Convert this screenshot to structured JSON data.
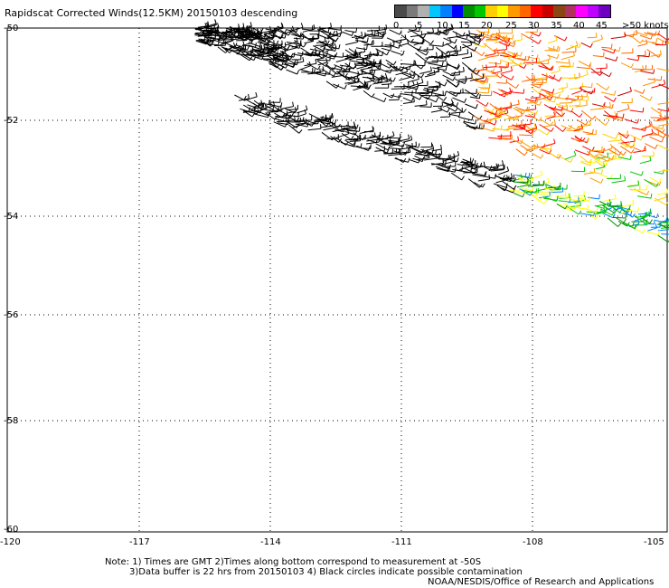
{
  "title": "Rapidscat Corrected Winds(12.5KM) 20150103 descending",
  "legend": {
    "colors": [
      "#4a4a4a",
      "#7a7a7a",
      "#b0b0b0",
      "#00c8ff",
      "#0080ff",
      "#0000ff",
      "#008f00",
      "#00c800",
      "#ffd000",
      "#ffff00",
      "#ff9900",
      "#ff6600",
      "#ff0000",
      "#c80000",
      "#8b4513",
      "#b03060",
      "#ff00ff",
      "#c000ff",
      "#7000c0"
    ],
    "labels": [
      "0",
      "5",
      "10",
      "15",
      "20",
      "25",
      "30",
      "35",
      "40",
      "45",
      ">50 knots"
    ]
  },
  "axes": {
    "lat_labels": [
      "-50",
      "-52",
      "-54",
      "-56",
      "-58",
      "-60"
    ],
    "lon_labels": [
      "-120",
      "-117",
      "-114",
      "-111",
      "-108",
      "-105"
    ]
  },
  "notes": {
    "line1": "Note: 1) Times are GMT  2)Times along bottom correspond to measurement at -50S",
    "line2": "3)Data buffer is 22 hrs from 20150103  4) Black circles indicate possible contamination",
    "credit": "NOAA/NESDIS/Office of Research and Applications"
  }
}
